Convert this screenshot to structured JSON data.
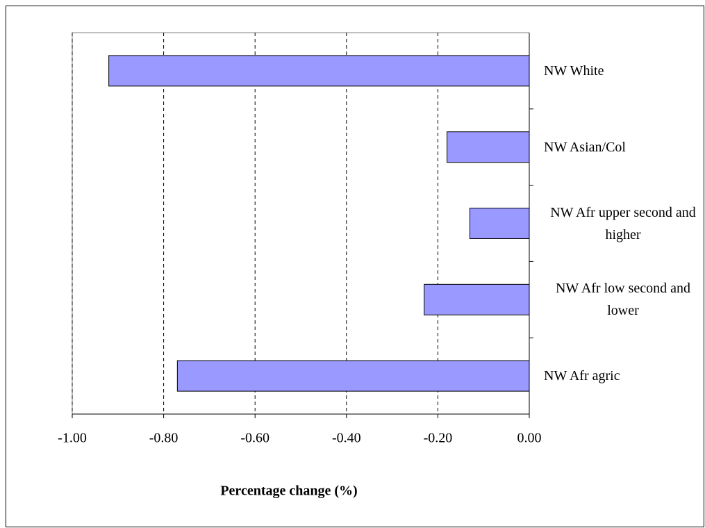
{
  "chart_data": {
    "type": "hbar",
    "xlabel": "Percentage change (%)",
    "categories": [
      "NW White",
      "NW Asian/Col",
      "NW Afr upper second and higher",
      "NW Afr low second and lower",
      "NW Afr agric"
    ],
    "values": [
      -0.92,
      -0.18,
      -0.13,
      -0.23,
      -0.77
    ],
    "color": "#9999ff",
    "xlim": [
      -1.0,
      0.0
    ],
    "xticks": [
      {
        "value": -1.0,
        "label": "-1.00"
      },
      {
        "value": -0.8,
        "label": "-0.80"
      },
      {
        "value": -0.6,
        "label": "-0.60"
      },
      {
        "value": -0.4,
        "label": "-0.40"
      },
      {
        "value": -0.2,
        "label": "-0.20"
      },
      {
        "value": 0.0,
        "label": "0.00"
      }
    ],
    "grid": true
  }
}
